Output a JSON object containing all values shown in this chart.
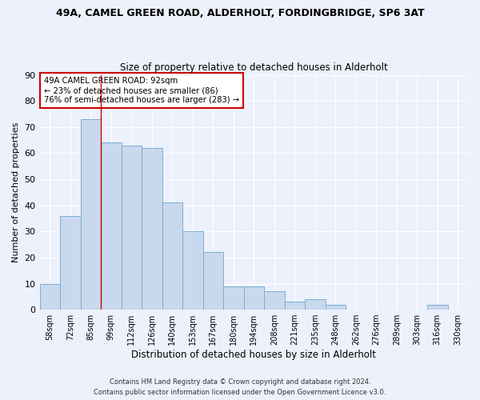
{
  "title1": "49A, CAMEL GREEN ROAD, ALDERHOLT, FORDINGBRIDGE, SP6 3AT",
  "title2": "Size of property relative to detached houses in Alderholt",
  "xlabel": "Distribution of detached houses by size in Alderholt",
  "ylabel": "Number of detached properties",
  "bar_labels": [
    "58sqm",
    "72sqm",
    "85sqm",
    "99sqm",
    "112sqm",
    "126sqm",
    "140sqm",
    "153sqm",
    "167sqm",
    "180sqm",
    "194sqm",
    "208sqm",
    "221sqm",
    "235sqm",
    "248sqm",
    "262sqm",
    "276sqm",
    "289sqm",
    "303sqm",
    "316sqm",
    "330sqm"
  ],
  "bar_values": [
    10,
    36,
    73,
    64,
    63,
    62,
    41,
    30,
    22,
    9,
    9,
    7,
    3,
    4,
    2,
    0,
    0,
    0,
    0,
    2,
    0
  ],
  "bar_color": "#c8d9ee",
  "bar_edge_color": "#7aadd4",
  "ylim": [
    0,
    90
  ],
  "yticks": [
    0,
    10,
    20,
    30,
    40,
    50,
    60,
    70,
    80,
    90
  ],
  "property_line_x": 2.5,
  "property_line_color": "#cc0000",
  "annotation_title": "49A CAMEL GREEN ROAD: 92sqm",
  "annotation_line1": "← 23% of detached houses are smaller (86)",
  "annotation_line2": "76% of semi-detached houses are larger (283) →",
  "annotation_box_color": "#cc0000",
  "footnote1": "Contains HM Land Registry data © Crown copyright and database right 2024.",
  "footnote2": "Contains public sector information licensed under the Open Government Licence v3.0.",
  "background_color": "#edf1fb",
  "grid_color": "#ffffff"
}
